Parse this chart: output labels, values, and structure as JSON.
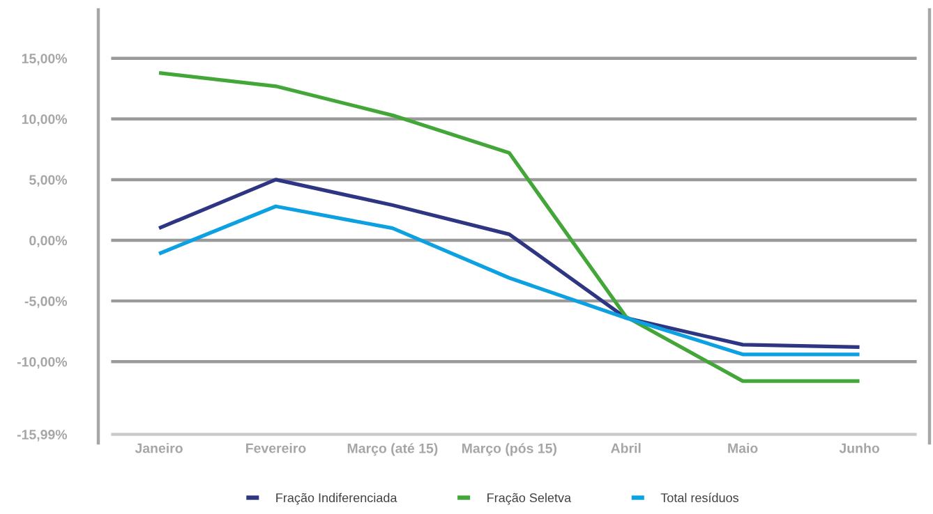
{
  "chart_data": {
    "type": "line",
    "categories": [
      "Janeiro",
      "Fevereiro",
      "Março (até 15)",
      "Março (pós 15)",
      "Abril",
      "Maio",
      "Junho"
    ],
    "series": [
      {
        "name": "Fração Indiferenciada",
        "color": "#2e3583",
        "values": [
          1.0,
          5.0,
          2.9,
          0.5,
          -6.4,
          -8.6,
          -8.8
        ]
      },
      {
        "name": "Fração Seletva",
        "color": "#43a638",
        "values": [
          13.8,
          12.7,
          10.3,
          7.2,
          -6.3,
          -11.6,
          -11.6
        ]
      },
      {
        "name": "Total resíduos",
        "color": "#0ea1e2",
        "values": [
          -1.1,
          2.8,
          1.0,
          -3.1,
          -6.4,
          -9.4,
          -9.4
        ]
      }
    ],
    "ylim": [
      -16.7,
      19
    ],
    "yticks": [
      {
        "value": -15.99,
        "label": "-15,99%"
      },
      {
        "value": -10,
        "label": "-10,00%"
      },
      {
        "value": -5,
        "label": "-5,00%"
      },
      {
        "value": 0,
        "label": "0,00%"
      },
      {
        "value": 5,
        "label": "5,00%"
      },
      {
        "value": 10,
        "label": "10,00%"
      },
      {
        "value": 15,
        "label": "15,00%"
      }
    ],
    "grid": "y",
    "legend": "bottom",
    "marker": "none",
    "line_style": "solid"
  }
}
